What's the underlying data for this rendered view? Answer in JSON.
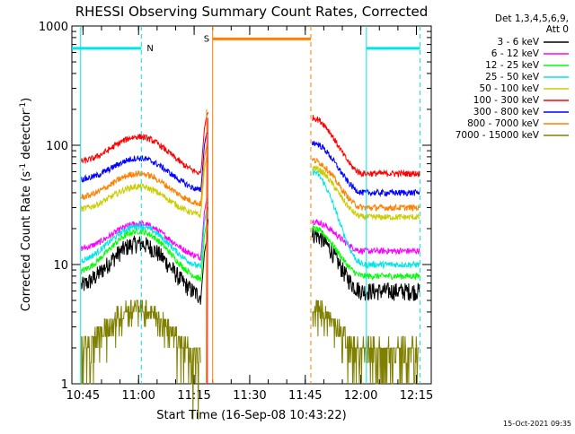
{
  "chart_data": {
    "type": "line",
    "title": "RHESSI Observing Summary Count Rates, Corrected",
    "xlabel": "Start Time (16-Sep-08 10:43:22)",
    "ylabel": "Corrected Count Rate (s⁻¹ detector⁻¹)",
    "ylabel_parts": {
      "main": "Corrected Count Rate (s",
      "sup1": "-1",
      "mid": " detector",
      "sup2": "-1",
      "end": ")"
    },
    "y_scale": "log",
    "ylim": [
      1,
      1000
    ],
    "y_ticks": [
      {
        "value": 1,
        "label": "1"
      },
      {
        "value": 10,
        "label": "10"
      },
      {
        "value": 100,
        "label": "100"
      },
      {
        "value": 1000,
        "label": "1000"
      }
    ],
    "x_range_minutes": [
      -1.37,
      95.63
    ],
    "x_ticks": [
      {
        "value": 1.63,
        "label": "10:45"
      },
      {
        "value": 16.63,
        "label": "11:00"
      },
      {
        "value": 31.63,
        "label": "11:15"
      },
      {
        "value": 46.63,
        "label": "11:30"
      },
      {
        "value": 61.63,
        "label": "11:45"
      },
      {
        "value": 76.63,
        "label": "12:00"
      },
      {
        "value": 91.63,
        "label": "12:15"
      }
    ],
    "legend": {
      "position": "right",
      "header1": "Det 1,3,4,5,6,9,",
      "header2": "Att 0"
    },
    "series": [
      {
        "name": "3 - 6 keV",
        "color": "#000000",
        "pre": [
          6,
          15,
          5
        ],
        "post": [
          18,
          6
        ]
      },
      {
        "name": "6 - 12 keV",
        "color": "#ff00ff",
        "pre": [
          13,
          22,
          11
        ],
        "post": [
          23,
          13
        ]
      },
      {
        "name": "12 - 25 keV",
        "color": "#00ff00",
        "pre": [
          8,
          19,
          7
        ],
        "post": [
          20,
          8
        ]
      },
      {
        "name": "25 - 50 keV",
        "color": "#00e5e5",
        "pre": [
          10,
          21,
          9
        ],
        "post": [
          60,
          10
        ]
      },
      {
        "name": "50 - 100 keV",
        "color": "#cccc00",
        "pre": [
          28,
          45,
          25
        ],
        "post": [
          65,
          25
        ]
      },
      {
        "name": "100 - 300 keV",
        "color": "#ff0000",
        "pre": [
          70,
          118,
          55
        ],
        "post": [
          170,
          58
        ]
      },
      {
        "name": "300 - 800 keV",
        "color": "#0000ff",
        "pre": [
          50,
          78,
          40
        ],
        "post": [
          105,
          40
        ]
      },
      {
        "name": "800 - 7000 keV",
        "color": "#ff8000",
        "pre": [
          35,
          58,
          31
        ],
        "post": [
          75,
          30
        ]
      },
      {
        "name": "7000 - 15000 keV",
        "color": "#808000",
        "pre": [
          2,
          4.5,
          1.5
        ],
        "post": [
          4.5,
          2
        ]
      }
    ],
    "flags": [
      {
        "label": "N",
        "color": "#00e5e5",
        "x_start": -1.37,
        "x_end": 17.38,
        "level": 650,
        "dashed_at": 17.38
      },
      {
        "label": "S",
        "color": "#ff8000",
        "x_start": 36.63,
        "x_end": 63.13,
        "level": 780,
        "dashed_at": 63.13
      },
      {
        "label": "",
        "color": "#00e5e5",
        "x_start": 78.13,
        "x_end": 92.63,
        "level": 650,
        "dashed_at": 92.63
      }
    ],
    "grid": false
  },
  "footer": {
    "timestamp": "15-Oct-2021 09:35"
  }
}
